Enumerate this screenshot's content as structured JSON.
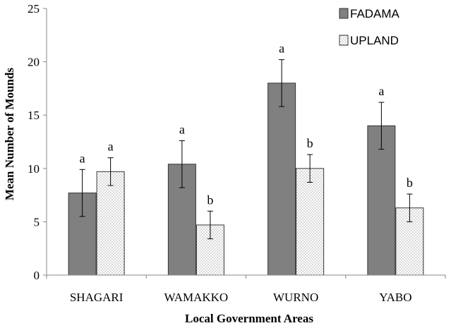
{
  "chart_data": {
    "type": "bar",
    "title": "",
    "xlabel": "Local Government Areas",
    "ylabel": "Mean Number of Mounds",
    "ylim": [
      0,
      25
    ],
    "yticks": [
      0,
      5,
      10,
      15,
      20,
      25
    ],
    "categories": [
      "SHAGARI",
      "WAMAKKO",
      "WURNO",
      "YABO"
    ],
    "series": [
      {
        "name": "FADAMA",
        "values": [
          7.7,
          10.4,
          18.0,
          14.0
        ],
        "errors": [
          2.2,
          2.2,
          2.2,
          2.2
        ],
        "significance": [
          "a",
          "a",
          "a",
          "a"
        ],
        "color": "#808080"
      },
      {
        "name": "UPLAND",
        "values": [
          9.7,
          4.7,
          10.0,
          6.3
        ],
        "errors": [
          1.3,
          1.3,
          1.3,
          1.3
        ],
        "significance": [
          "a",
          "b",
          "b",
          "b"
        ],
        "color": "#f0f0f0"
      }
    ],
    "legend_position": "top-right",
    "grid": false
  }
}
